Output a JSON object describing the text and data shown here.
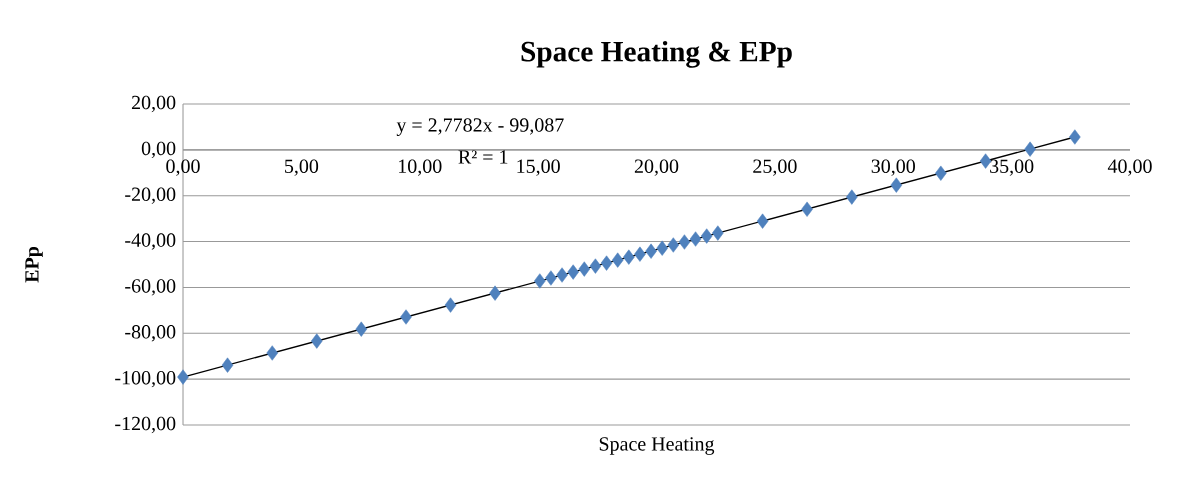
{
  "chart_data": {
    "type": "scatter",
    "title": "Space Heating  & EPp",
    "xlabel": "Space Heating",
    "ylabel": "EPp",
    "annotations": [
      "y = 2,7782x - 99,087",
      "R² = 1"
    ],
    "series": [
      {
        "color": "#4f81bd",
        "marker": "diamond",
        "x": [
          0,
          1.88,
          3.77,
          5.65,
          7.53,
          9.42,
          11.3,
          13.18,
          15.07,
          15.54,
          16.01,
          16.48,
          16.95,
          17.42,
          17.89,
          18.36,
          18.83,
          19.3,
          19.77,
          20.24,
          20.71,
          21.18,
          21.65,
          22.12,
          22.59,
          24.48,
          26.36,
          28.25,
          30.13,
          32.01,
          33.9,
          35.78,
          37.67
        ],
        "values": [
          -99.1,
          -93.9,
          -88.6,
          -83.4,
          -78.2,
          -72.9,
          -67.7,
          -62.5,
          -57.2,
          -55.9,
          -54.6,
          -53.3,
          -52.0,
          -50.7,
          -49.4,
          -48.1,
          -46.8,
          -45.5,
          -44.2,
          -42.9,
          -41.5,
          -40.2,
          -38.9,
          -37.6,
          -36.3,
          -31.1,
          -25.9,
          -20.6,
          -15.4,
          -10.2,
          -4.9,
          0.3,
          5.6
        ]
      },
      {
        "type": "line",
        "color": "#000000",
        "marker": "none",
        "x": [
          0,
          37.67
        ],
        "values": [
          -99.1,
          5.6
        ]
      }
    ],
    "xlim": [
      0,
      40
    ],
    "xticks": [
      {
        "value": 0,
        "label": "0,00"
      },
      {
        "value": 5,
        "label": "5,00"
      },
      {
        "value": 10,
        "label": "10,00"
      },
      {
        "value": 15,
        "label": "15,00"
      },
      {
        "value": 20,
        "label": "20,00"
      },
      {
        "value": 25,
        "label": "25,00"
      },
      {
        "value": 30,
        "label": "30,00"
      },
      {
        "value": 35,
        "label": "35,00"
      },
      {
        "value": 40,
        "label": "40,00"
      }
    ],
    "ylim": [
      -120,
      20
    ],
    "yticks": [
      {
        "value": -120,
        "label": "-120,00"
      },
      {
        "value": -100,
        "label": "-100,00"
      },
      {
        "value": -80,
        "label": "-80,00"
      },
      {
        "value": -60,
        "label": "-60,00"
      },
      {
        "value": -40,
        "label": "-40,00"
      },
      {
        "value": -20,
        "label": "-20,00"
      },
      {
        "value": 0,
        "label": "0,00"
      },
      {
        "value": 20,
        "label": "20,00"
      }
    ],
    "grid": "y"
  }
}
